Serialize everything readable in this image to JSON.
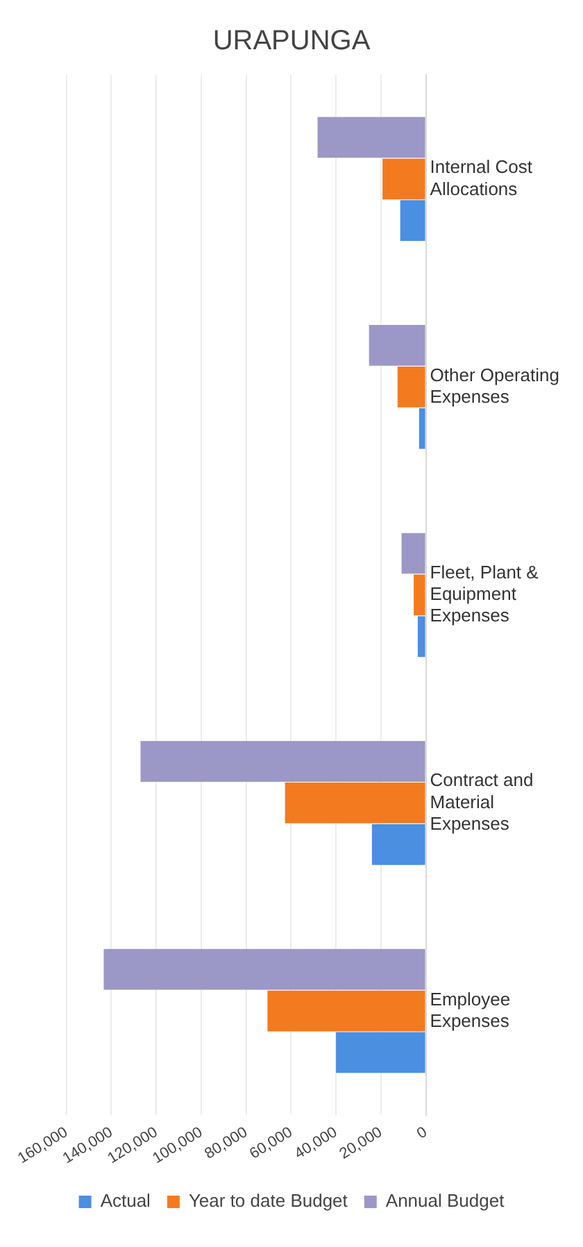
{
  "chart_data": {
    "type": "bar",
    "title": "URAPUNGA",
    "orientation": "horizontal",
    "categories": [
      "Internal Cost Allocations",
      "Other Operating Expenses",
      "Fleet, Plant & Equipment Expenses",
      "Contract and Material Expenses",
      "Employee Expenses"
    ],
    "series": [
      {
        "name": "Actual",
        "color": "#4a8fe0",
        "values": [
          11400,
          3000,
          3600,
          24000,
          40000
        ]
      },
      {
        "name": "Year to date Budget",
        "color": "#f47a20",
        "values": [
          19300,
          12600,
          5400,
          62700,
          70500
        ]
      },
      {
        "name": "Annual Budget",
        "color": "#9b98c8",
        "values": [
          48200,
          25300,
          10800,
          127000,
          143400
        ]
      }
    ],
    "xlim": [
      160000,
      0
    ],
    "xticks": [
      {
        "value": 160000,
        "label": "160,000"
      },
      {
        "value": 140000,
        "label": "140,000"
      },
      {
        "value": 120000,
        "label": "120,000"
      },
      {
        "value": 100000,
        "label": "100,000"
      },
      {
        "value": 80000,
        "label": "80,000"
      },
      {
        "value": 60000,
        "label": "60,000"
      },
      {
        "value": 40000,
        "label": "40,000"
      },
      {
        "value": 20000,
        "label": "20,000"
      },
      0
    ],
    "grid": "x",
    "legend": "bottom"
  }
}
